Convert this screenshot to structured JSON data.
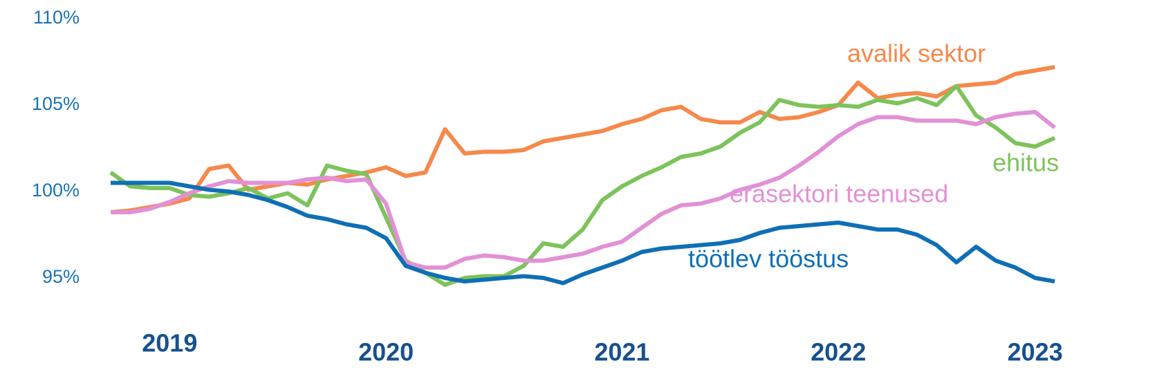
{
  "chart_data": {
    "type": "line",
    "categories": [
      null,
      null,
      null,
      "2019",
      null,
      null,
      null,
      null,
      null,
      null,
      null,
      null,
      null,
      null,
      "2020",
      null,
      null,
      null,
      null,
      null,
      null,
      null,
      null,
      null,
      null,
      null,
      "2021",
      null,
      null,
      null,
      null,
      null,
      null,
      null,
      null,
      null,
      null,
      "2022",
      null,
      null,
      null,
      null,
      null,
      null,
      null,
      null,
      null,
      "2023",
      null
    ],
    "series": [
      {
        "name": "avalik sektor",
        "color": "#f5894b",
        "values": [
          98.8,
          98.9,
          99.1,
          99.3,
          99.6,
          101.3,
          101.5,
          100.1,
          100.3,
          100.5,
          100.4,
          100.7,
          100.9,
          101.1,
          101.4,
          100.9,
          101.1,
          103.6,
          102.2,
          102.3,
          102.3,
          102.4,
          102.9,
          103.1,
          103.3,
          103.5,
          103.9,
          104.2,
          104.7,
          104.9,
          104.2,
          104.0,
          104.0,
          104.6,
          104.2,
          104.3,
          104.6,
          105.0,
          106.3,
          105.4,
          105.6,
          105.7,
          105.5,
          106.1,
          106.2,
          106.3,
          106.8,
          107.0,
          107.2
        ]
      },
      {
        "name": "ehitus",
        "color": "#7dc35b",
        "values": [
          101.1,
          100.3,
          100.2,
          100.2,
          99.8,
          99.7,
          99.9,
          100.2,
          99.6,
          99.9,
          99.2,
          101.5,
          101.2,
          101.0,
          98.5,
          96.0,
          95.3,
          94.6,
          95.0,
          95.1,
          95.1,
          95.7,
          97.0,
          96.8,
          97.8,
          99.5,
          100.3,
          100.9,
          101.4,
          102.0,
          102.2,
          102.6,
          103.4,
          104.0,
          105.3,
          105.0,
          104.9,
          105.0,
          104.9,
          105.3,
          105.1,
          105.4,
          105.0,
          106.1,
          104.4,
          103.7,
          102.8,
          102.6,
          103.1
        ]
      },
      {
        "name": "erasektori teenused",
        "color": "#e291d6",
        "values": [
          98.8,
          98.8,
          99.0,
          99.4,
          99.9,
          100.3,
          100.6,
          100.5,
          100.5,
          100.5,
          100.7,
          100.8,
          100.6,
          100.7,
          99.3,
          95.9,
          95.6,
          95.6,
          96.1,
          96.3,
          96.2,
          96.0,
          96.0,
          96.2,
          96.4,
          96.8,
          97.1,
          97.9,
          98.7,
          99.2,
          99.3,
          99.6,
          100.1,
          100.4,
          100.8,
          101.5,
          102.3,
          103.2,
          103.9,
          104.3,
          104.3,
          104.1,
          104.1,
          104.1,
          103.9,
          104.3,
          104.5,
          104.6,
          103.7
        ]
      },
      {
        "name": "töötlev tööstus",
        "color": "#0f6fb5",
        "values": [
          100.5,
          100.5,
          100.5,
          100.5,
          100.3,
          100.1,
          100.0,
          99.8,
          99.5,
          99.1,
          98.6,
          98.4,
          98.1,
          97.9,
          97.3,
          95.7,
          95.3,
          95.0,
          94.8,
          94.9,
          95.0,
          95.1,
          95.0,
          94.7,
          95.2,
          95.6,
          96.0,
          96.5,
          96.7,
          96.8,
          96.9,
          97.0,
          97.2,
          97.6,
          97.9,
          98.0,
          98.1,
          98.2,
          98.0,
          97.8,
          97.8,
          97.5,
          96.9,
          95.9,
          96.8,
          96.0,
          95.6,
          95.0,
          94.8
        ]
      }
    ],
    "ylim": [
      92,
      111
    ],
    "yticks": [
      {
        "value": 95,
        "label": "95%"
      },
      {
        "value": 100,
        "label": "100%"
      },
      {
        "value": 105,
        "label": "105%"
      },
      {
        "value": 110,
        "label": "110%"
      }
    ],
    "grid": false,
    "legend": false
  }
}
